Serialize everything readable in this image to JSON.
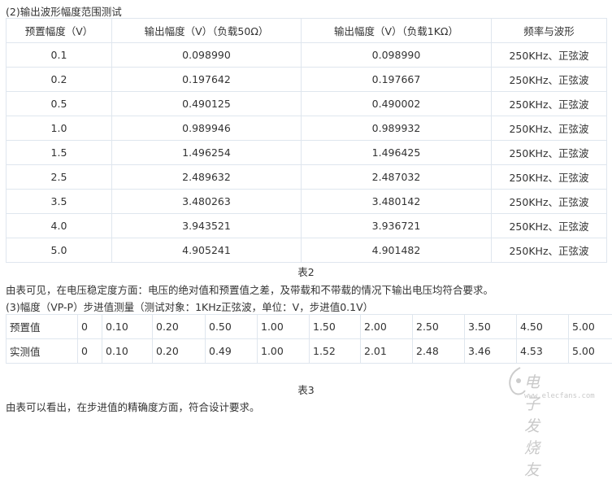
{
  "section2": {
    "heading": "(2)输出波形幅度范围测试",
    "columns": [
      "预置幅度（V）",
      "输出幅度（V）（负载50Ω）",
      "输出幅度（V）（负载1KΩ）",
      "频率与波形"
    ],
    "rows": [
      [
        "0.1",
        "0.098990",
        "0.098990",
        "250KHz、正弦波"
      ],
      [
        "0.2",
        "0.197642",
        "0.197667",
        "250KHz、正弦波"
      ],
      [
        "0.5",
        "0.490125",
        "0.490002",
        "250KHz、正弦波"
      ],
      [
        "1.0",
        "0.989946",
        "0.989932",
        "250KHz、正弦波"
      ],
      [
        "1.5",
        "1.496254",
        "1.496425",
        "250KHz、正弦波"
      ],
      [
        "2.5",
        "2.489632",
        "2.487032",
        "250KHz、正弦波"
      ],
      [
        "3.5",
        "3.480263",
        "3.480142",
        "250KHz、正弦波"
      ],
      [
        "4.0",
        "3.943521",
        "3.936721",
        "250KHz、正弦波"
      ],
      [
        "5.0",
        "4.905241",
        "4.901482",
        "250KHz、正弦波"
      ]
    ],
    "caption": "表2",
    "conclusion": "由表可见，在电压稳定度方面：电压的绝对值和预置值之差，及带载和不带载的情况下输出电压均符合要求。"
  },
  "section3": {
    "heading": "(3)幅度（VP-P）步进值测量（测试对象：1KHz正弦波，单位：V，步进值0.1V）",
    "rows": [
      [
        "预置值",
        "0",
        "0.10",
        "0.20",
        "0.50",
        "1.00",
        "1.50",
        "2.00",
        "2.50",
        "3.50",
        "4.50",
        "5.00"
      ],
      [
        "实测值",
        "0",
        "0.10",
        "0.20",
        "0.49",
        "1.00",
        "1.52",
        "2.01",
        "2.48",
        "3.46",
        "4.53",
        "5.00"
      ]
    ],
    "caption": "表3",
    "conclusion": "由表可以看出，在步进值的精确度方面，符合设计要求。"
  },
  "watermark": {
    "name": "电子发烧友",
    "url": "www.elecfans.com"
  }
}
